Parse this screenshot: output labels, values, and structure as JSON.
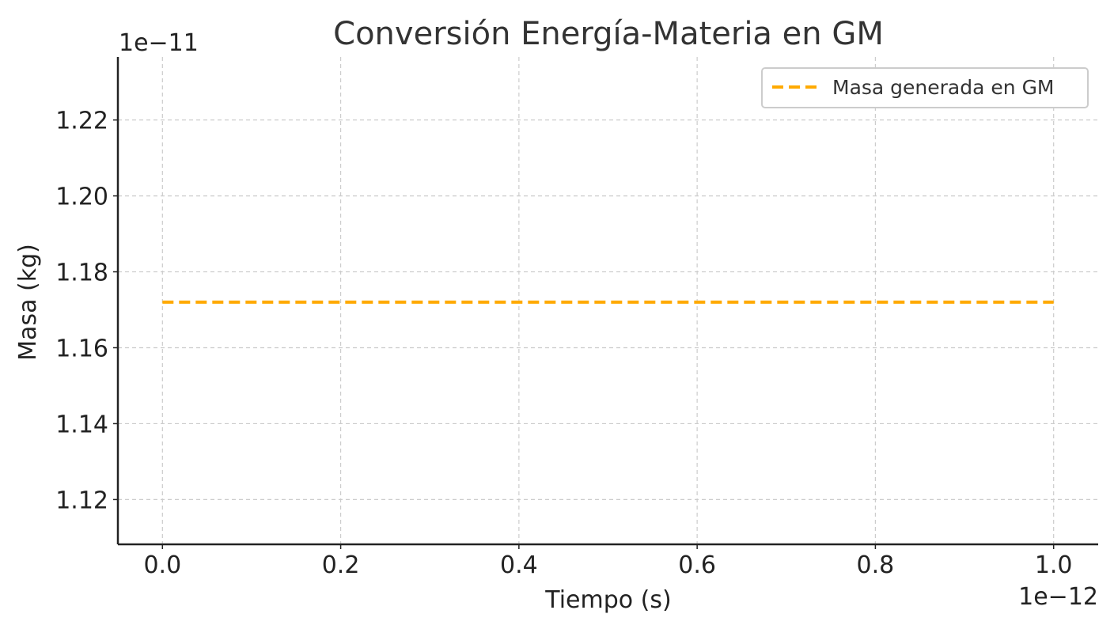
{
  "chart_data": {
    "type": "line",
    "title": "Conversión Energía-Materia en GM",
    "xlabel": "Tiempo (s)",
    "ylabel": "Masa (kg)",
    "x_offset_label": "1e−12",
    "y_offset_label": "1e−11",
    "xlim": [
      -0.05,
      1.05
    ],
    "ylim": [
      1.1082,
      1.2366
    ],
    "x_ticks": [
      0.0,
      0.2,
      0.4,
      0.6,
      0.8,
      1.0
    ],
    "x_tick_labels": [
      "0.0",
      "0.2",
      "0.4",
      "0.6",
      "0.8",
      "1.0"
    ],
    "y_ticks": [
      1.12,
      1.14,
      1.16,
      1.18,
      1.2,
      1.22
    ],
    "y_tick_labels": [
      "1.12",
      "1.14",
      "1.16",
      "1.18",
      "1.20",
      "1.22"
    ],
    "grid": true,
    "legend_position": "top-right",
    "series": [
      {
        "name": "Masa generada en GM",
        "color": "#FFAA00",
        "line_style": "dashed",
        "x": [
          0.0,
          0.1,
          0.2,
          0.3,
          0.4,
          0.5,
          0.6,
          0.7,
          0.8,
          0.9,
          1.0
        ],
        "y": [
          1.172,
          1.172,
          1.172,
          1.172,
          1.172,
          1.172,
          1.172,
          1.172,
          1.172,
          1.172,
          1.172
        ]
      }
    ]
  }
}
